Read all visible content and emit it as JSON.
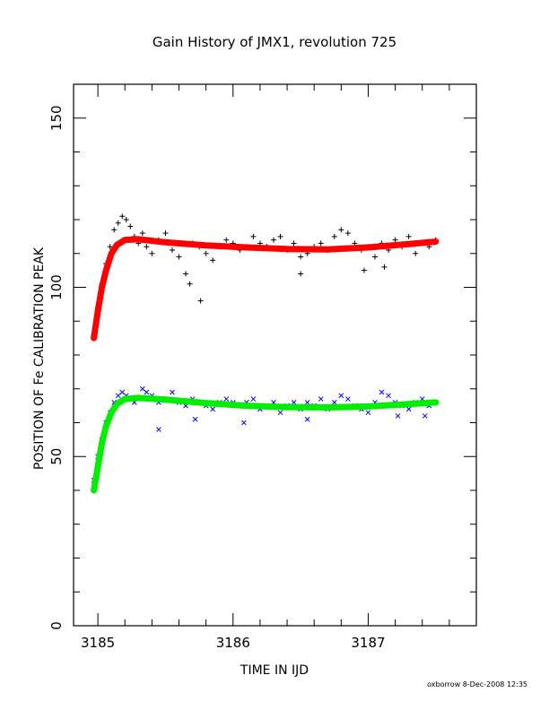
{
  "chart_data": {
    "type": "scatter",
    "title": "Gain History of JMX1, revolution 725",
    "xlabel": "TIME IN IJD",
    "ylabel": "POSITION OF Fe CALIBRATION PEAK",
    "xlim": [
      3184.82,
      3187.8
    ],
    "ylim": [
      0,
      160
    ],
    "x_ticks": [
      3185,
      3186,
      3187
    ],
    "y_ticks": [
      0,
      50,
      100,
      150
    ],
    "grid": false,
    "legend": "none",
    "footer": "oxborrow  8-Dec-2008 12:35",
    "series": [
      {
        "marker": "plus",
        "color": "#000000",
        "role": "data",
        "x": [
          3184.97,
          3185.0,
          3185.03,
          3185.06,
          3185.09,
          3185.12,
          3185.15,
          3185.18,
          3185.21,
          3185.24,
          3185.27,
          3185.3,
          3185.33,
          3185.36,
          3185.4,
          3185.45,
          3185.5,
          3185.55,
          3185.6,
          3185.65,
          3185.7,
          3185.75,
          3185.8,
          3185.85,
          3185.9,
          3185.95,
          3186.0,
          3186.05,
          3186.1,
          3186.15,
          3186.2,
          3186.25,
          3186.3,
          3186.35,
          3186.4,
          3186.45,
          3186.5,
          3186.55,
          3186.6,
          3186.65,
          3186.7,
          3186.75,
          3186.8,
          3186.85,
          3186.9,
          3186.95,
          3187.0,
          3187.05,
          3187.1,
          3187.15,
          3187.2,
          3187.25,
          3187.3,
          3187.35,
          3187.4,
          3187.45,
          3187.5
        ],
        "y": [
          86,
          94,
          101,
          107,
          112,
          117,
          119,
          121,
          120,
          118,
          115,
          113,
          116,
          112,
          110,
          114,
          116,
          111,
          109,
          104,
          113,
          112,
          110,
          108,
          112,
          114,
          113,
          111,
          112,
          115,
          113,
          112,
          114,
          115,
          111,
          113,
          109,
          110,
          112,
          113,
          111,
          115,
          117,
          116,
          113,
          111,
          112,
          109,
          113,
          111,
          114,
          112,
          115,
          110,
          113,
          112,
          114
        ]
      },
      {
        "marker": "plus",
        "color": "#000000",
        "role": "outliers",
        "x": [
          3185.76,
          3185.68,
          3186.5,
          3187.12,
          3186.97
        ],
        "y": [
          96,
          101,
          104,
          106,
          105
        ]
      },
      {
        "marker": "line",
        "color": "#ff0000",
        "role": "fit",
        "x": [
          3184.97,
          3185.0,
          3185.03,
          3185.06,
          3185.1,
          3185.14,
          3185.2,
          3185.3,
          3185.5,
          3185.8,
          3186.1,
          3186.4,
          3186.7,
          3187.0,
          3187.3,
          3187.5
        ],
        "y": [
          85,
          93,
          100,
          105,
          110,
          112.5,
          114,
          114.2,
          113.3,
          112.4,
          111.8,
          111.3,
          111.2,
          111.8,
          112.8,
          113.5
        ]
      },
      {
        "marker": "cross",
        "color": "#0000ff",
        "role": "data",
        "x": [
          3184.97,
          3185.0,
          3185.03,
          3185.06,
          3185.09,
          3185.12,
          3185.15,
          3185.18,
          3185.21,
          3185.24,
          3185.27,
          3185.3,
          3185.33,
          3185.36,
          3185.4,
          3185.45,
          3185.5,
          3185.55,
          3185.6,
          3185.65,
          3185.7,
          3185.75,
          3185.8,
          3185.85,
          3185.9,
          3185.95,
          3186.0,
          3186.05,
          3186.1,
          3186.15,
          3186.2,
          3186.25,
          3186.3,
          3186.35,
          3186.4,
          3186.45,
          3186.5,
          3186.55,
          3186.6,
          3186.65,
          3186.7,
          3186.75,
          3186.8,
          3186.85,
          3186.9,
          3186.95,
          3187.0,
          3187.05,
          3187.1,
          3187.15,
          3187.2,
          3187.25,
          3187.3,
          3187.35,
          3187.4,
          3187.45,
          3187.5
        ],
        "y": [
          43,
          50,
          55,
          60,
          63,
          66,
          68,
          69,
          68,
          67,
          66,
          67,
          70,
          69,
          68,
          66,
          67,
          69,
          66,
          65,
          67,
          66,
          65,
          64,
          66,
          67,
          66,
          65,
          66,
          67,
          64,
          65,
          66,
          63,
          65,
          66,
          64,
          66,
          65,
          67,
          64,
          66,
          68,
          67,
          65,
          64,
          63,
          66,
          69,
          68,
          66,
          65,
          64,
          66,
          67,
          65,
          66
        ]
      },
      {
        "marker": "cross",
        "color": "#0000ff",
        "role": "outliers",
        "x": [
          3185.45,
          3185.72,
          3186.08,
          3186.55,
          3187.22,
          3187.42
        ],
        "y": [
          58,
          61,
          60,
          61,
          62,
          62
        ]
      },
      {
        "marker": "line",
        "color": "#00ee00",
        "role": "fit",
        "x": [
          3184.97,
          3185.0,
          3185.03,
          3185.06,
          3185.1,
          3185.14,
          3185.2,
          3185.3,
          3185.5,
          3185.8,
          3186.1,
          3186.4,
          3186.7,
          3187.0,
          3187.3,
          3187.5
        ],
        "y": [
          40,
          47,
          54,
          59,
          63,
          65.5,
          67,
          67.3,
          66.8,
          65.8,
          65.0,
          64.6,
          64.5,
          64.8,
          65.5,
          66
        ]
      }
    ]
  }
}
